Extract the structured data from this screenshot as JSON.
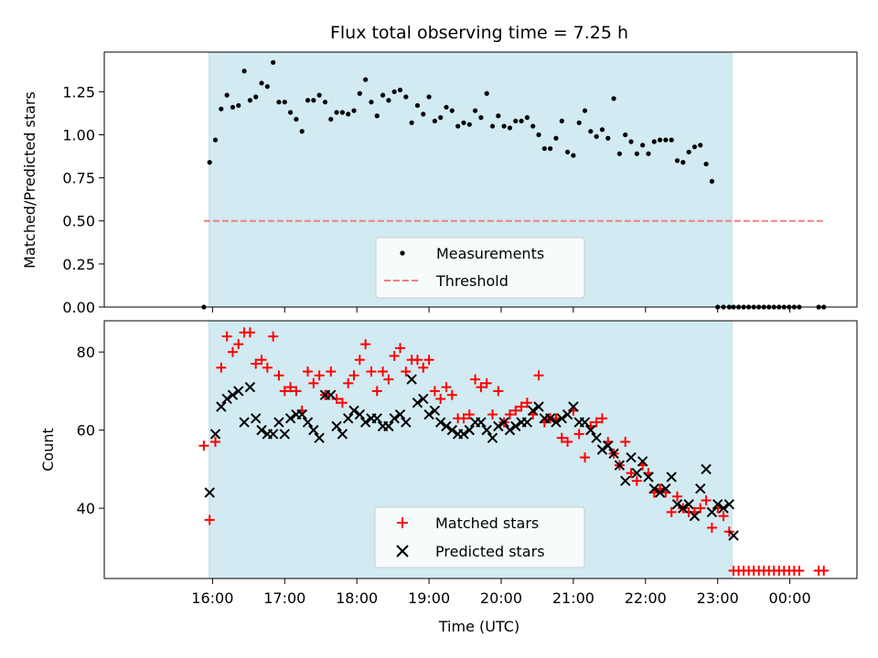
{
  "title": "Flux total observing time = 7.25 h",
  "colors": {
    "span": "#add8e6",
    "threshold": "#f08080",
    "measurements": "#000000",
    "matched": "#ff0000",
    "predicted": "#000000"
  },
  "chart_data": [
    {
      "type": "scatter",
      "ylabel": "Matched/Predicted stars",
      "ylim": [
        0,
        1.48
      ],
      "yticks": [
        "0.00",
        "0.25",
        "0.50",
        "0.75",
        "1.00",
        "1.25"
      ],
      "xlim": [
        14.5,
        24.93
      ],
      "shaded_span": [
        15.95,
        23.2
      ],
      "threshold": 0.5,
      "threshold_x": [
        15.88,
        24.47
      ],
      "legend": [
        "Measurements",
        "Threshold"
      ],
      "legend_position": "lower-center",
      "series": [
        {
          "name": "Measurements",
          "x": [
            15.88,
            15.96,
            16.04,
            16.12,
            16.2,
            16.28,
            16.36,
            16.44,
            16.52,
            16.6,
            16.68,
            16.76,
            16.84,
            16.92,
            17.0,
            17.08,
            17.16,
            17.24,
            17.32,
            17.4,
            17.48,
            17.56,
            17.64,
            17.72,
            17.8,
            17.88,
            17.96,
            18.04,
            18.12,
            18.2,
            18.28,
            18.36,
            18.44,
            18.52,
            18.6,
            18.68,
            18.76,
            18.84,
            18.92,
            19.0,
            19.08,
            19.16,
            19.24,
            19.32,
            19.4,
            19.48,
            19.56,
            19.64,
            19.72,
            19.8,
            19.88,
            19.96,
            20.04,
            20.12,
            20.2,
            20.28,
            20.36,
            20.44,
            20.52,
            20.6,
            20.68,
            20.76,
            20.84,
            20.92,
            21.0,
            21.08,
            21.16,
            21.24,
            21.32,
            21.4,
            21.48,
            21.56,
            21.64,
            21.72,
            21.8,
            21.88,
            21.96,
            22.04,
            22.12,
            22.2,
            22.28,
            22.36,
            22.44,
            22.52,
            22.6,
            22.68,
            22.76,
            22.84,
            22.92,
            23.0,
            23.08,
            23.16,
            23.22,
            23.29,
            23.36,
            23.43,
            23.5,
            23.57,
            23.64,
            23.71,
            23.78,
            23.85,
            23.92,
            23.99,
            24.06,
            24.13,
            24.4,
            24.47
          ],
          "y": [
            0.0,
            0.84,
            0.97,
            1.15,
            1.23,
            1.16,
            1.17,
            1.37,
            1.2,
            1.22,
            1.3,
            1.28,
            1.42,
            1.19,
            1.19,
            1.13,
            1.09,
            1.02,
            1.2,
            1.2,
            1.23,
            1.19,
            1.09,
            1.13,
            1.13,
            1.12,
            1.14,
            1.24,
            1.32,
            1.19,
            1.11,
            1.23,
            1.2,
            1.25,
            1.26,
            1.22,
            1.07,
            1.17,
            1.12,
            1.22,
            1.08,
            1.1,
            1.16,
            1.14,
            1.05,
            1.07,
            1.06,
            1.14,
            1.1,
            1.24,
            1.05,
            1.11,
            1.05,
            1.04,
            1.08,
            1.08,
            1.1,
            1.05,
            1.0,
            0.92,
            0.92,
            0.98,
            1.08,
            0.9,
            0.88,
            1.07,
            1.14,
            1.02,
            0.99,
            1.03,
            0.98,
            1.21,
            0.89,
            1.0,
            0.96,
            0.89,
            0.94,
            0.89,
            0.96,
            0.97,
            0.97,
            0.97,
            0.85,
            0.84,
            0.9,
            0.93,
            0.94,
            0.83,
            0.73,
            0.0,
            0.0,
            0.0,
            0.0,
            0.0,
            0.0,
            0.0,
            0.0,
            0.0,
            0.0,
            0.0,
            0.0,
            0.0,
            0.0,
            0.0,
            0.0,
            0.0,
            0.0,
            0.0
          ]
        }
      ]
    },
    {
      "type": "scatter",
      "xlabel": "Time (UTC)",
      "ylabel": "Count",
      "ylim": [
        22,
        88
      ],
      "yticks": [
        "40",
        "60",
        "80"
      ],
      "xlim": [
        14.5,
        24.93
      ],
      "xticks": [
        "16:00",
        "17:00",
        "18:00",
        "19:00",
        "20:00",
        "21:00",
        "22:00",
        "23:00",
        "00:00"
      ],
      "shaded_span": [
        15.95,
        23.2
      ],
      "legend": [
        "Matched stars",
        "Predicted stars"
      ],
      "legend_position": "lower-center",
      "series": [
        {
          "name": "Matched stars",
          "x": [
            15.88,
            15.96,
            16.04,
            16.12,
            16.2,
            16.28,
            16.36,
            16.44,
            16.52,
            16.6,
            16.68,
            16.76,
            16.84,
            16.92,
            17.0,
            17.08,
            17.16,
            17.24,
            17.32,
            17.4,
            17.48,
            17.56,
            17.64,
            17.72,
            17.8,
            17.88,
            17.96,
            18.04,
            18.12,
            18.2,
            18.28,
            18.36,
            18.44,
            18.52,
            18.6,
            18.68,
            18.76,
            18.84,
            18.92,
            19.0,
            19.08,
            19.16,
            19.24,
            19.32,
            19.4,
            19.48,
            19.56,
            19.64,
            19.72,
            19.8,
            19.88,
            19.96,
            20.04,
            20.12,
            20.2,
            20.28,
            20.36,
            20.44,
            20.52,
            20.6,
            20.68,
            20.76,
            20.84,
            20.92,
            21.0,
            21.08,
            21.16,
            21.24,
            21.32,
            21.4,
            21.48,
            21.56,
            21.64,
            21.72,
            21.8,
            21.88,
            21.96,
            22.04,
            22.12,
            22.2,
            22.28,
            22.36,
            22.44,
            22.52,
            22.6,
            22.68,
            22.76,
            22.84,
            22.92,
            23.0,
            23.08,
            23.16,
            23.22,
            23.29,
            23.36,
            23.43,
            23.5,
            23.57,
            23.64,
            23.71,
            23.78,
            23.85,
            23.92,
            23.99,
            24.06,
            24.13,
            24.4,
            24.47
          ],
          "y": [
            56,
            37,
            57,
            76,
            84,
            80,
            82,
            85,
            85,
            77,
            78,
            76,
            84,
            74,
            70,
            71,
            70,
            65,
            75,
            72,
            74,
            69,
            75,
            68,
            67,
            72,
            74,
            78,
            82,
            75,
            70,
            75,
            73,
            79,
            81,
            75,
            78,
            78,
            76,
            78,
            70,
            68,
            71,
            69,
            63,
            63,
            64,
            73,
            71,
            72,
            64,
            70,
            62,
            64,
            65,
            66,
            67,
            64,
            74,
            62,
            63,
            63,
            58,
            57,
            65,
            59,
            53,
            61,
            62,
            63,
            57,
            54,
            51,
            57,
            49,
            47,
            51,
            49,
            44,
            45,
            44,
            39,
            43,
            40,
            39,
            39,
            40,
            42,
            35,
            40,
            38,
            34,
            24,
            24,
            24,
            24,
            24,
            24,
            24,
            24,
            24,
            24,
            24,
            24,
            24,
            24,
            24,
            24
          ]
        },
        {
          "name": "Predicted stars",
          "x": [
            15.88,
            15.96,
            16.04,
            16.12,
            16.2,
            16.28,
            16.36,
            16.44,
            16.52,
            16.6,
            16.68,
            16.76,
            16.84,
            16.92,
            17.0,
            17.08,
            17.16,
            17.24,
            17.32,
            17.4,
            17.48,
            17.56,
            17.64,
            17.72,
            17.8,
            17.88,
            17.96,
            18.04,
            18.12,
            18.2,
            18.28,
            18.36,
            18.44,
            18.52,
            18.6,
            18.68,
            18.76,
            18.84,
            18.92,
            19.0,
            19.08,
            19.16,
            19.24,
            19.32,
            19.4,
            19.48,
            19.56,
            19.64,
            19.72,
            19.8,
            19.88,
            19.96,
            20.04,
            20.12,
            20.2,
            20.28,
            20.36,
            20.44,
            20.52,
            20.6,
            20.68,
            20.76,
            20.84,
            20.92,
            21.0,
            21.08,
            21.16,
            21.24,
            21.32,
            21.4,
            21.48,
            21.56,
            21.64,
            21.72,
            21.8,
            21.88,
            21.96,
            22.04,
            22.12,
            22.2,
            22.28,
            22.36,
            22.44,
            22.52,
            22.6,
            22.68,
            22.76,
            22.84,
            22.92,
            23.0,
            23.08,
            23.16,
            23.22
          ],
          "y": [
            null,
            44,
            59,
            66,
            68,
            69,
            70,
            62,
            71,
            63,
            60,
            59,
            59,
            62,
            59,
            63,
            64,
            64,
            62,
            60,
            58,
            69,
            69,
            61,
            59,
            63,
            65,
            64,
            62,
            63,
            63,
            61,
            61,
            63,
            64,
            62,
            73,
            67,
            68,
            64,
            65,
            62,
            61,
            60,
            59,
            59,
            60,
            62,
            62,
            60,
            58,
            61,
            62,
            60,
            61,
            62,
            62,
            65,
            66,
            63,
            63,
            62,
            63,
            64,
            66,
            62,
            62,
            60,
            58,
            55,
            56,
            54,
            51,
            47,
            53,
            49,
            52,
            48,
            45,
            44,
            45,
            48,
            41,
            40,
            41,
            38,
            45,
            50,
            39,
            41,
            40,
            41,
            33
          ]
        }
      ]
    }
  ]
}
